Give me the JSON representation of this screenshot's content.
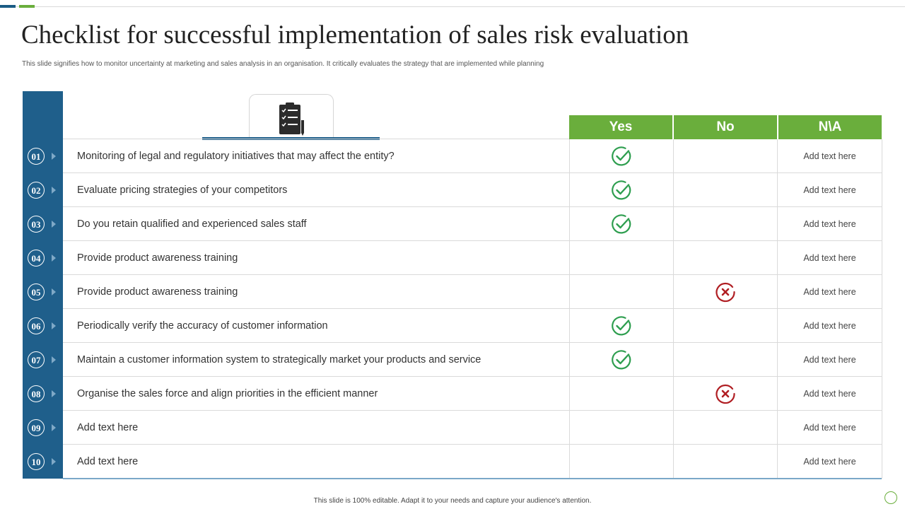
{
  "title": "Checklist for successful implementation of sales risk evaluation",
  "subtitle": "This slide signifies how to monitor uncertainty at marketing and sales analysis in an organisation. It critically evaluates the strategy that are implemented  while planning",
  "headers": {
    "yes": "Yes",
    "no": "No",
    "na": "N\\A"
  },
  "rows": [
    {
      "num": "01",
      "text": "Monitoring of legal and regulatory initiatives that may affect the entity?",
      "mark": "yes",
      "na": "Add text here"
    },
    {
      "num": "02",
      "text": "Evaluate  pricing strategies of your competitors",
      "mark": "yes",
      "na": "Add text here"
    },
    {
      "num": "03",
      "text": "Do you retain qualified and experienced sales staff",
      "mark": "yes",
      "na": "Add text here"
    },
    {
      "num": "04",
      "text": "Provide  product awareness training",
      "mark": "none",
      "na": "Add text here"
    },
    {
      "num": "05",
      "text": "Provide  product awareness training",
      "mark": "no",
      "na": "Add text here"
    },
    {
      "num": "06",
      "text": "Periodically verify the accuracy of customer information",
      "mark": "yes",
      "na": "Add text here"
    },
    {
      "num": "07",
      "text": "Maintain a customer information system to strategically market your products and service",
      "mark": "yes",
      "na": "Add text here"
    },
    {
      "num": "08",
      "text": "Organise the sales force and align priorities in the efficient manner",
      "mark": "no",
      "na": "Add text here"
    },
    {
      "num": "09",
      "text": "Add text here",
      "mark": "none",
      "na": "Add text here"
    },
    {
      "num": "10",
      "text": "Add text here",
      "mark": "none",
      "na": "Add text here"
    }
  ],
  "icons": {
    "header": "clipboard-checklist-icon",
    "yes": "check-circle-icon",
    "no": "x-circle-icon"
  },
  "colors": {
    "green": "#6aae3c",
    "blue": "#1f5f8b",
    "check": "#2e9e4f",
    "cross": "#b01e23"
  },
  "footer": "This slide is 100% editable. Adapt it to your needs and capture your audience's attention."
}
